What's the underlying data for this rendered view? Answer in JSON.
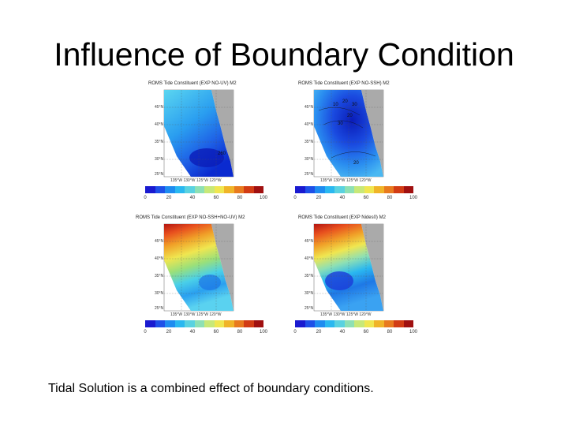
{
  "slide": {
    "title": "Influence of Boundary Condition",
    "caption": "Tidal Solution is a combined effect of boundary conditions."
  },
  "panels": [
    {
      "title": "ROMS Tide Constituent (EXP NO-UV) M2",
      "lat_labels": [
        "45°N",
        "40°N",
        "35°N",
        "30°N",
        "25°N"
      ],
      "lon_labels": "135°W 130°W 125°W 120°W",
      "contour_labels": [
        "260"
      ],
      "colors": {
        "top": "#5bd6f0",
        "mid": "#1e78e6",
        "low": "#0a2ad0"
      }
    },
    {
      "title": "ROMS Tide Constituent (EXP NO-SSH) M2",
      "lat_labels": [
        "45°N",
        "40°N",
        "35°N",
        "30°N",
        "25°N"
      ],
      "lon_labels": "135°W 130°W 125°W 120°W",
      "contour_labels": [
        "10",
        "20",
        "30",
        "20",
        "30",
        "20"
      ],
      "colors": {
        "top": "#0a2ad0",
        "mid": "#1e78e6",
        "low": "#3aa2f2"
      }
    },
    {
      "title": "ROMS Tide Constituent (EXP NO-SSH+NO-UV) M2",
      "lat_labels": [
        "45°N",
        "40°N",
        "35°N",
        "30°N",
        "25°N"
      ],
      "lon_labels": "135°W 130°W 125°W 120°W",
      "contour_labels": [],
      "colors": {
        "top": "#c81e14",
        "mid": "#f0d22a",
        "low": "#3aa2f2"
      }
    },
    {
      "title": "ROMS Tide Constituent (EXP Nides0) M2",
      "lat_labels": [
        "45°N",
        "40°N",
        "35°N",
        "30°N",
        "25°N"
      ],
      "lon_labels": "135°W 130°W 125°W 120°W",
      "contour_labels": [],
      "colors": {
        "top": "#c81e14",
        "mid": "#f0d22a",
        "low": "#1e78e6"
      }
    }
  ],
  "colorbar": {
    "ticks": [
      "0",
      "20",
      "40",
      "60",
      "80",
      "100"
    ],
    "colors": [
      "#1a1ad0",
      "#1e50e8",
      "#1e8cf0",
      "#2ab8f0",
      "#5ad2e0",
      "#8ee0b4",
      "#c8e878",
      "#f0e650",
      "#f0b428",
      "#e87a1e",
      "#d23c14",
      "#a01010"
    ]
  }
}
